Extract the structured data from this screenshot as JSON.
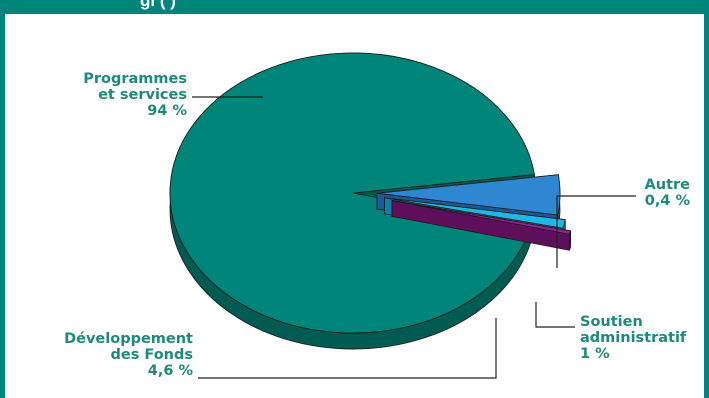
{
  "header": {
    "title_fragment": "gi (    )"
  },
  "colors": {
    "accent": "#00857a",
    "label_text": "#1e8a7c",
    "leader_line": "#222222"
  },
  "chart_data": {
    "type": "pie",
    "slices": [
      {
        "label": "Programmes et services",
        "label_lines": [
          "Programmes",
          "et services"
        ],
        "value": 94,
        "display": "94 %",
        "color": "#00857a",
        "side_color": "#005b53"
      },
      {
        "label": "Développement des Fonds",
        "label_lines": [
          "Développement",
          "des Fonds"
        ],
        "value": 4.6,
        "display": "4,6 %",
        "color": "#2f86d1",
        "side_color": "#1a5a9a"
      },
      {
        "label": "Soutien administratif",
        "label_lines": [
          "Soutien",
          "administratif"
        ],
        "value": 1,
        "display": "1 %",
        "color": "#20b6e6",
        "side_color": "#127ea3"
      },
      {
        "label": "Autre",
        "label_lines": [
          "Autre"
        ],
        "value": 0.4,
        "display": "0,4 %",
        "color": "#9a1c98",
        "side_color": "#5d0f5c"
      }
    ],
    "exploded": [
      "Développement des Fonds",
      "Soutien administratif",
      "Autre"
    ],
    "view": "3d"
  }
}
